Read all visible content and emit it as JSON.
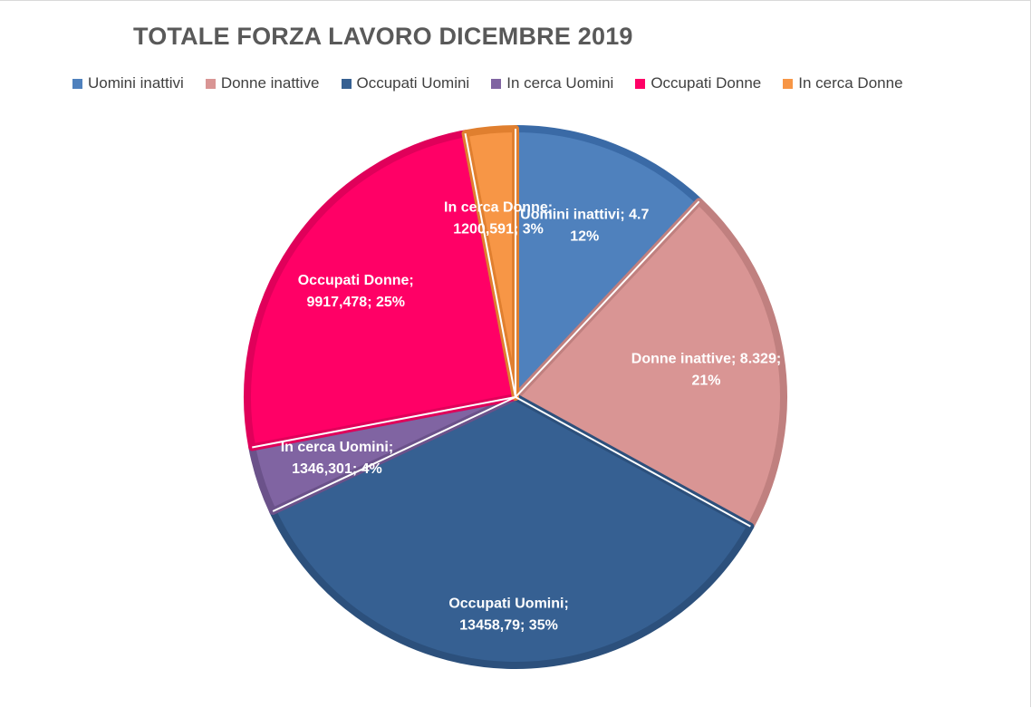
{
  "chart_data": {
    "type": "pie",
    "title": "TOTALE FORZA LAVORO DICEMBRE 2019",
    "legend_position": "top",
    "slices": [
      {
        "name": "Uomini inattivi",
        "value": 4.7,
        "percent": 12,
        "color": "#4F81BD",
        "border": "#3A6AA6",
        "label_lines": [
          "Uomini inattivi; 4.7",
          "12%"
        ]
      },
      {
        "name": "Donne inattive",
        "value": 8.329,
        "percent": 21,
        "color": "#D99594",
        "border": "#C0807F",
        "label_lines": [
          "Donne inattive; 8.329;",
          "21%"
        ]
      },
      {
        "name": "Occupati Uomini",
        "value": 13458.79,
        "percent": 35,
        "color": "#366092",
        "border": "#2C507C",
        "label_lines": [
          "Occupati Uomini;",
          "13458,79; 35%"
        ]
      },
      {
        "name": "In cerca Uomini",
        "value": 1346.301,
        "percent": 4,
        "color": "#8064A2",
        "border": "#6B528A",
        "label_lines": [
          "In cerca Uomini;",
          "1346,301; 4%"
        ]
      },
      {
        "name": "Occupati Donne",
        "value": 9917.478,
        "percent": 25,
        "color": "#FF0066",
        "border": "#E0005A",
        "label_lines": [
          "Occupati Donne;",
          "9917,478; 25%"
        ]
      },
      {
        "name": "In cerca Donne",
        "value": 1200.591,
        "percent": 3,
        "color": "#F79646",
        "border": "#E07F2F",
        "label_lines": [
          "In cerca Donne;",
          "1200,591; 3%"
        ]
      }
    ]
  }
}
